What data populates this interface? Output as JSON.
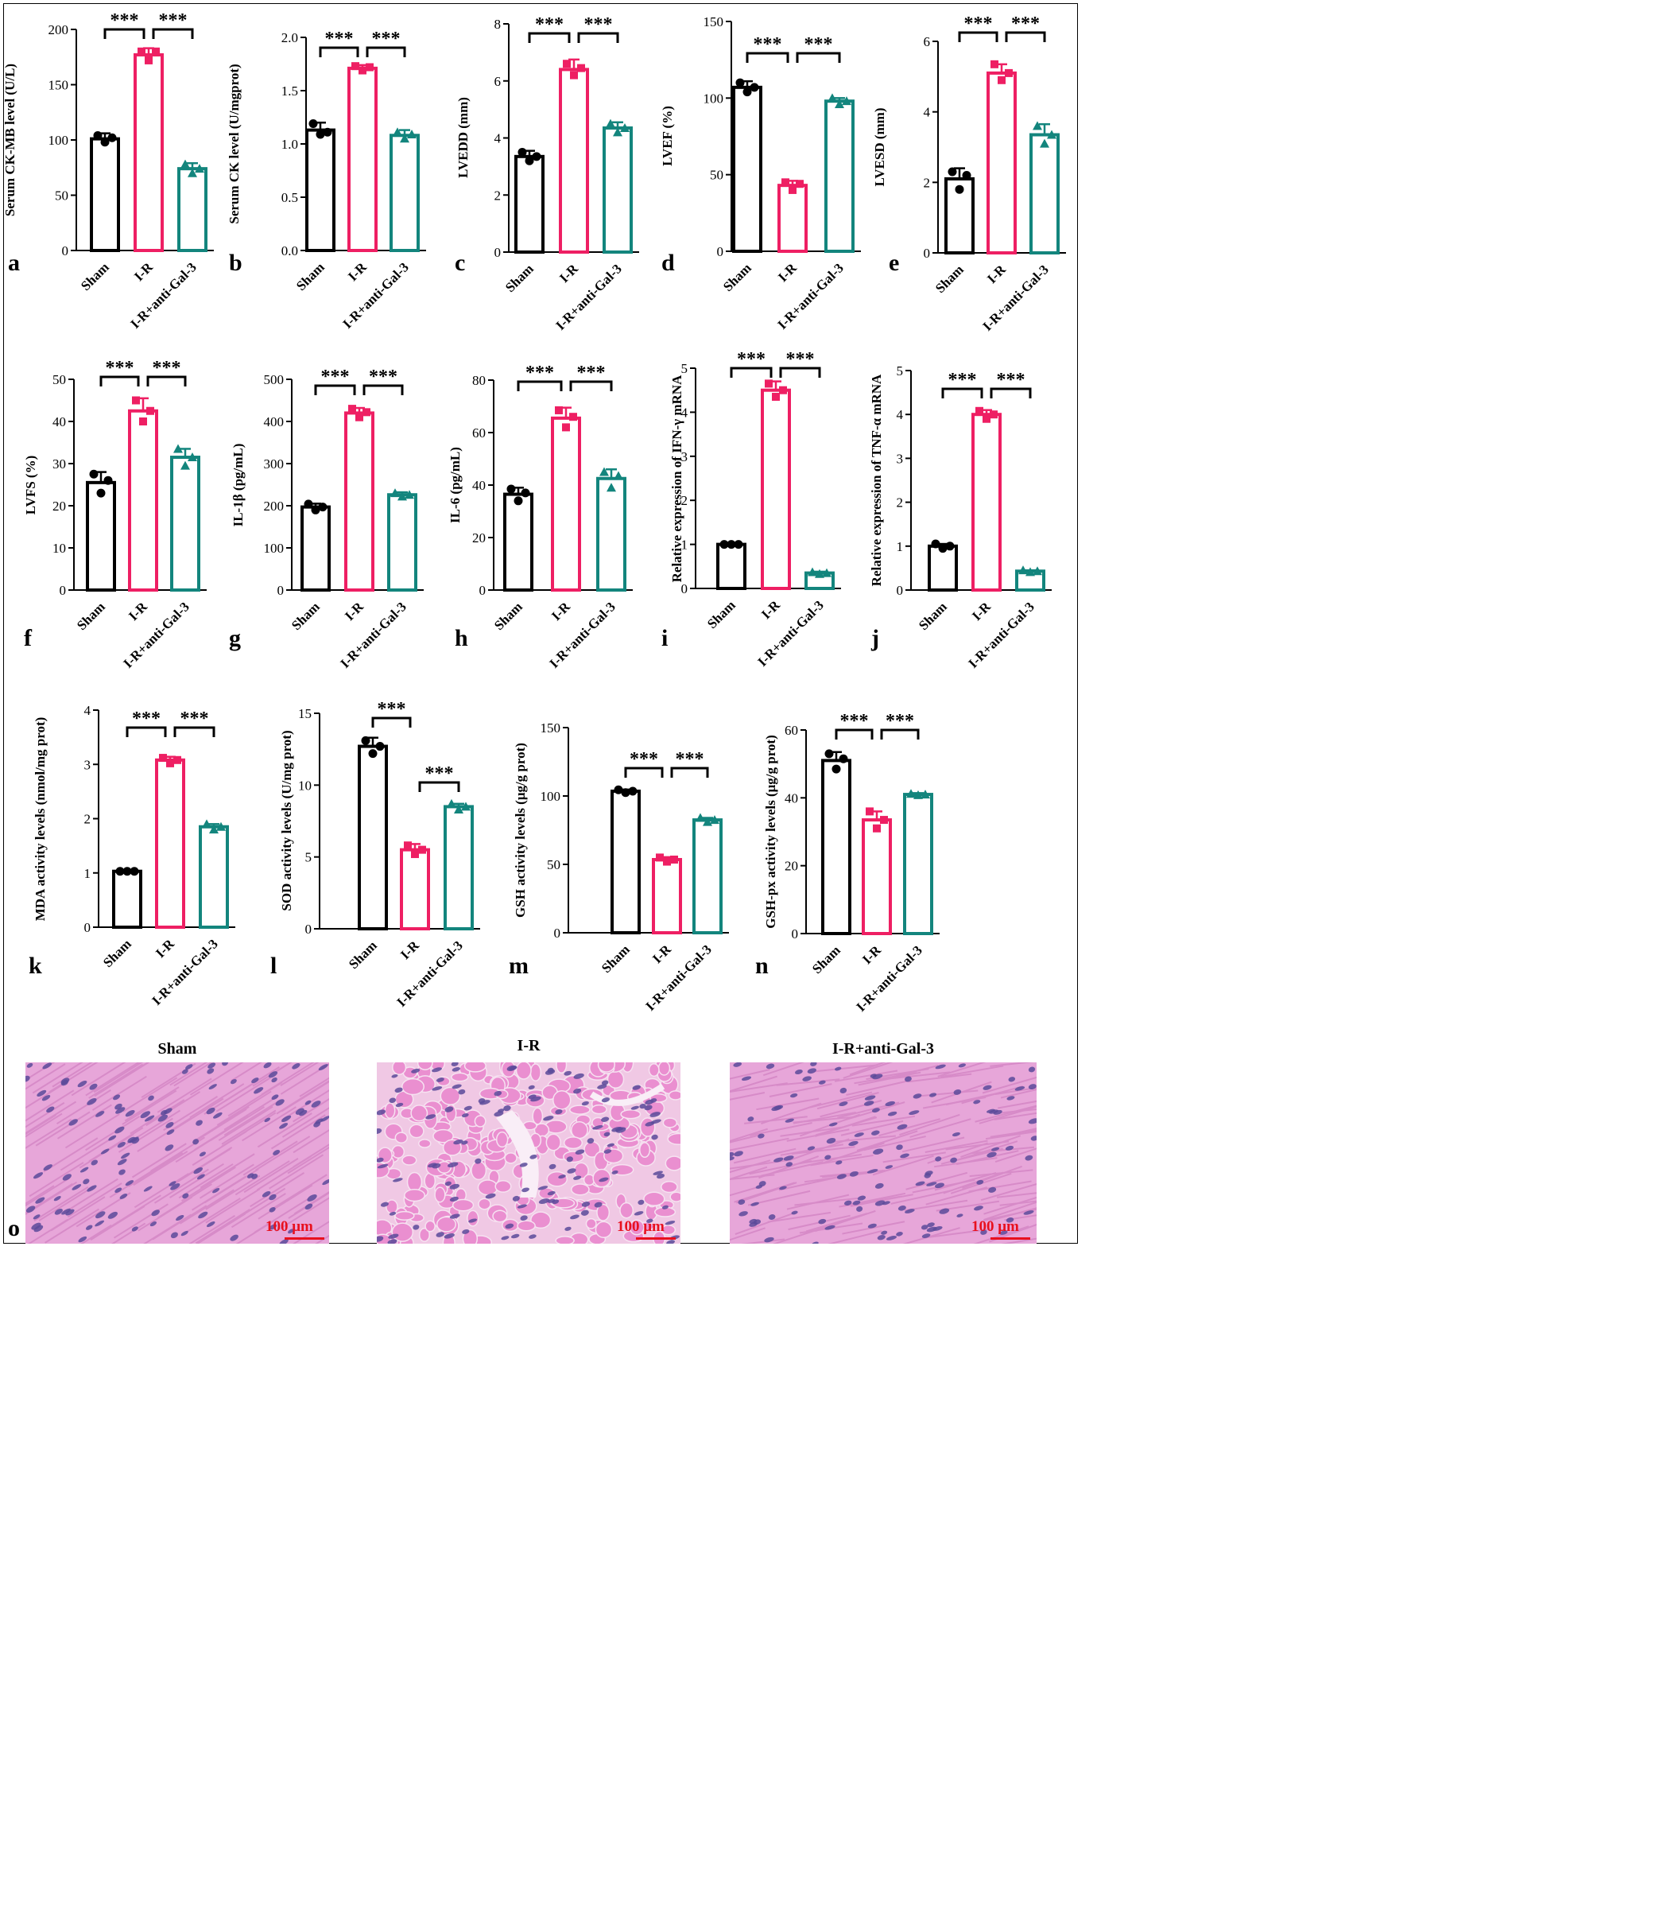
{
  "colors": {
    "sham": "#000000",
    "ir": "#ee1f63",
    "anti": "#13857d",
    "scale": "#e8101e"
  },
  "groups": [
    "Sham",
    "I-R",
    "I-R+anti-Gal-3"
  ],
  "sig_label": "***",
  "chart_data": [
    {
      "panel": "a",
      "type": "bar",
      "ylabel": "Serum CK-MB level (U/L)",
      "ylim": [
        0,
        200
      ],
      "yticks": [
        0,
        50,
        100,
        150,
        200
      ],
      "values": [
        101,
        177,
        74
      ],
      "errors": [
        5,
        6,
        5
      ],
      "points": [
        [
          104,
          98,
          102
        ],
        [
          180,
          172,
          180
        ],
        [
          78,
          70,
          74
        ]
      ],
      "brackets": [
        [
          0,
          1
        ],
        [
          1,
          2
        ]
      ]
    },
    {
      "panel": "b",
      "type": "bar",
      "ylabel": "Serum CK level (U/mgprot)",
      "ylim": [
        0,
        2.0
      ],
      "yticks": [
        "0.0",
        "0.5",
        "1.0",
        "1.5",
        "2.0"
      ],
      "values": [
        1.13,
        1.71,
        1.08
      ],
      "errors": [
        0.07,
        0.03,
        0.05
      ],
      "points": [
        [
          1.19,
          1.09,
          1.11
        ],
        [
          1.73,
          1.69,
          1.72
        ],
        [
          1.11,
          1.05,
          1.09
        ]
      ],
      "brackets": [
        [
          0,
          1
        ],
        [
          1,
          2
        ]
      ]
    },
    {
      "panel": "c",
      "type": "bar",
      "ylabel": "LVEDD (mm)",
      "ylim": [
        0,
        8
      ],
      "yticks": [
        0,
        2,
        4,
        6,
        8
      ],
      "values": [
        3.35,
        6.4,
        4.35
      ],
      "errors": [
        0.2,
        0.35,
        0.2
      ],
      "points": [
        [
          3.5,
          3.2,
          3.35
        ],
        [
          6.6,
          6.2,
          6.45
        ],
        [
          4.5,
          4.2,
          4.35
        ]
      ],
      "brackets": [
        [
          0,
          1
        ],
        [
          1,
          2
        ]
      ]
    },
    {
      "panel": "d",
      "type": "bar",
      "ylabel": "LVEF (%)",
      "ylim": [
        0,
        150
      ],
      "yticks": [
        0,
        50,
        100,
        150
      ],
      "values": [
        107,
        43,
        98
      ],
      "errors": [
        4,
        3,
        2
      ],
      "points": [
        [
          110,
          104,
          107
        ],
        [
          45,
          40,
          44
        ],
        [
          100,
          96,
          98
        ]
      ],
      "brackets": [
        [
          0,
          1
        ],
        [
          1,
          2
        ]
      ]
    },
    {
      "panel": "e",
      "type": "bar",
      "ylabel": "LVESD (mm)",
      "ylim": [
        0,
        6
      ],
      "yticks": [
        0,
        2,
        4,
        6
      ],
      "values": [
        2.1,
        5.1,
        3.35
      ],
      "errors": [
        0.3,
        0.25,
        0.3
      ],
      "points": [
        [
          2.3,
          1.8,
          2.2
        ],
        [
          5.35,
          4.9,
          5.1
        ],
        [
          3.6,
          3.1,
          3.35
        ]
      ],
      "brackets": [
        [
          0,
          1
        ],
        [
          1,
          2
        ]
      ]
    },
    {
      "panel": "f",
      "type": "bar",
      "ylabel": "LVFS (%)",
      "ylim": [
        0,
        50
      ],
      "yticks": [
        0,
        10,
        20,
        30,
        40,
        50
      ],
      "values": [
        25.5,
        42.5,
        31.5
      ],
      "errors": [
        2.5,
        3,
        2
      ],
      "points": [
        [
          27.5,
          23,
          26
        ],
        [
          45,
          40,
          42.5
        ],
        [
          33.5,
          29.5,
          31.5
        ]
      ],
      "brackets": [
        [
          0,
          1
        ],
        [
          1,
          2
        ]
      ]
    },
    {
      "panel": "g",
      "type": "bar",
      "ylabel": "IL-1β (pg/mL)",
      "ylim": [
        0,
        500
      ],
      "yticks": [
        0,
        100,
        200,
        300,
        400,
        500
      ],
      "values": [
        197,
        420,
        226
      ],
      "errors": [
        8,
        12,
        6
      ],
      "points": [
        [
          204,
          190,
          197
        ],
        [
          430,
          410,
          422
        ],
        [
          230,
          222,
          226
        ]
      ],
      "brackets": [
        [
          0,
          1
        ],
        [
          1,
          2
        ]
      ]
    },
    {
      "panel": "h",
      "type": "bar",
      "ylabel": "IL-6 (pg/mL)",
      "ylim": [
        0,
        80
      ],
      "yticks": [
        0,
        20,
        40,
        60,
        80
      ],
      "values": [
        36.5,
        65.5,
        42.5
      ],
      "errors": [
        2.5,
        4,
        3.5
      ],
      "points": [
        [
          38.5,
          34,
          37
        ],
        [
          68.5,
          62,
          66
        ],
        [
          45,
          39,
          43.5
        ]
      ],
      "brackets": [
        [
          0,
          1
        ],
        [
          1,
          2
        ]
      ]
    },
    {
      "panel": "i",
      "type": "bar",
      "ylabel": "Relative expression of IFN-γ mRNA",
      "ylim": [
        0,
        5
      ],
      "yticks": [
        0,
        1,
        2,
        3,
        4,
        5
      ],
      "values": [
        1.0,
        4.5,
        0.35
      ],
      "errors": [
        0.04,
        0.2,
        0.03
      ],
      "points": [
        [
          1.0,
          1.0,
          1.0
        ],
        [
          4.65,
          4.35,
          4.5
        ],
        [
          0.37,
          0.33,
          0.35
        ]
      ],
      "brackets": [
        [
          0,
          1
        ],
        [
          1,
          2
        ]
      ]
    },
    {
      "panel": "j",
      "type": "bar",
      "ylabel": "Relative expression of TNF-α mRNA",
      "ylim": [
        0,
        5
      ],
      "yticks": [
        0,
        1,
        2,
        3,
        4,
        5
      ],
      "values": [
        1.0,
        4.0,
        0.43
      ],
      "errors": [
        0.05,
        0.1,
        0.02
      ],
      "points": [
        [
          1.05,
          0.95,
          1.0
        ],
        [
          4.08,
          3.9,
          4.0
        ],
        [
          0.45,
          0.41,
          0.43
        ]
      ],
      "brackets": [
        [
          0,
          1
        ],
        [
          1,
          2
        ]
      ]
    },
    {
      "panel": "k",
      "type": "bar",
      "ylabel": "MDA activity levels (nmol/mg prot)",
      "ylim": [
        0,
        4
      ],
      "yticks": [
        0,
        1,
        2,
        3,
        4
      ],
      "values": [
        1.03,
        3.08,
        1.85
      ],
      "errors": [
        0.02,
        0.06,
        0.05
      ],
      "points": [
        [
          1.03,
          1.03,
          1.03
        ],
        [
          3.12,
          3.02,
          3.08
        ],
        [
          1.9,
          1.8,
          1.85
        ]
      ],
      "brackets": [
        [
          0,
          1
        ],
        [
          1,
          2
        ]
      ]
    },
    {
      "panel": "l",
      "type": "bar",
      "ylabel": "SOD activity levels (U/mg prot)",
      "ylim": [
        0,
        15
      ],
      "yticks": [
        0,
        5,
        10,
        15
      ],
      "values": [
        12.7,
        5.5,
        8.5
      ],
      "errors": [
        0.6,
        0.4,
        0.2
      ],
      "points": [
        [
          13.1,
          12.2,
          12.7
        ],
        [
          5.8,
          5.2,
          5.5
        ],
        [
          8.7,
          8.3,
          8.5
        ]
      ],
      "brackets": [
        [
          0,
          1
        ],
        [
          1,
          2
        ]
      ]
    },
    {
      "panel": "m",
      "type": "bar",
      "ylabel": "GSH activity levels (μg/g prot)",
      "ylim": [
        0,
        150
      ],
      "yticks": [
        0,
        50,
        100,
        150
      ],
      "values": [
        103.5,
        53.5,
        82.5
      ],
      "errors": [
        1.2,
        1.8,
        1.5
      ],
      "points": [
        [
          104.5,
          102.5,
          103.5
        ],
        [
          55,
          52,
          53.5
        ],
        [
          84,
          81,
          82.5
        ]
      ],
      "brackets": [
        [
          0,
          1
        ],
        [
          1,
          2
        ]
      ]
    },
    {
      "panel": "n",
      "type": "bar",
      "ylabel": "GSH-px activity levels (μg/g prot)",
      "ylim": [
        0,
        60
      ],
      "yticks": [
        0,
        20,
        40,
        60
      ],
      "values": [
        51,
        33.5,
        41
      ],
      "errors": [
        2.5,
        2.5,
        0.4
      ],
      "points": [
        [
          53,
          48.5,
          51.5
        ],
        [
          36,
          31,
          33.5
        ],
        [
          41.2,
          40.8,
          41
        ]
      ],
      "brackets": [
        [
          0,
          1
        ],
        [
          1,
          2
        ]
      ]
    }
  ],
  "histology": {
    "panel": "o",
    "titles": [
      "Sham",
      "I-R",
      "I-R+anti-Gal-3"
    ],
    "scale_label": "100 μm"
  }
}
